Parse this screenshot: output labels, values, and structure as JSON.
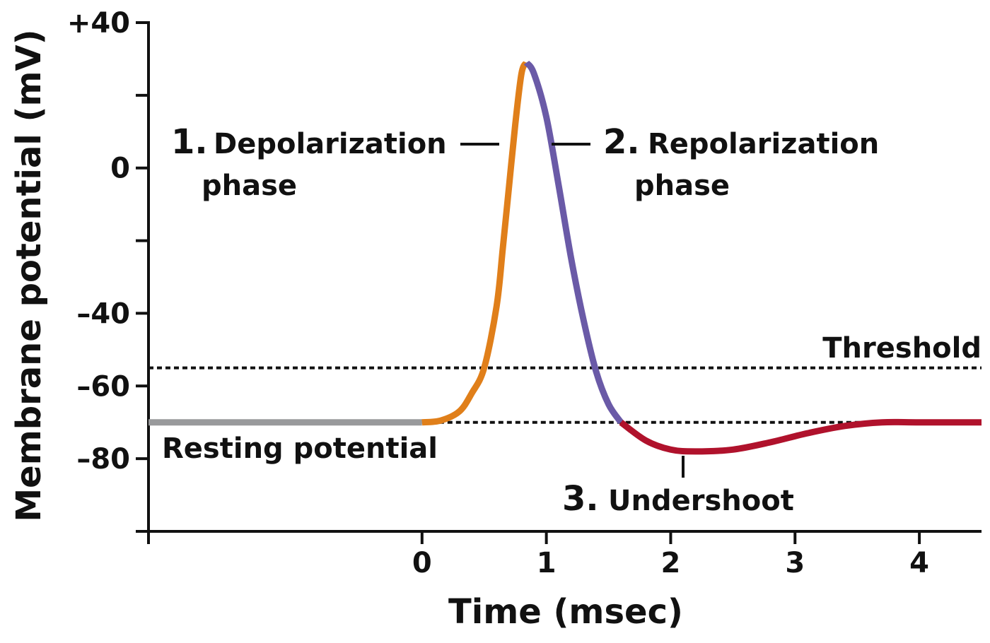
{
  "chart_data": {
    "type": "line",
    "title": "",
    "xlabel": "Time (msec)",
    "ylabel": "Membrane potential (mV)",
    "xlim": [
      -2.2,
      4.5
    ],
    "ylim": [
      -100,
      40
    ],
    "x_ticks": [
      {
        "value": 0,
        "label": "0"
      },
      {
        "value": 1,
        "label": "1"
      },
      {
        "value": 2,
        "label": "2"
      },
      {
        "value": 3,
        "label": "3"
      },
      {
        "value": 4,
        "label": "4"
      }
    ],
    "y_ticks": [
      {
        "value": 40,
        "label": "+40"
      },
      {
        "value": 20,
        "label": ""
      },
      {
        "value": 0,
        "label": "0"
      },
      {
        "value": -20,
        "label": ""
      },
      {
        "value": -40,
        "label": "–40"
      },
      {
        "value": -60,
        "label": "–60"
      },
      {
        "value": -80,
        "label": "–80"
      }
    ],
    "reference_lines": [
      {
        "name": "threshold",
        "y": -55,
        "x_from": -2.2,
        "x_to": 4.5,
        "style": "dotted",
        "label": "Threshold"
      },
      {
        "name": "resting",
        "y": -70,
        "x_from": 0,
        "x_to": 3.7,
        "style": "dotted",
        "label": ""
      }
    ],
    "series": [
      {
        "key": "resting",
        "color": "#999a9c",
        "points": [
          [
            -2.2,
            -70
          ],
          [
            0,
            -70
          ]
        ]
      },
      {
        "key": "depolarization",
        "color": "#e07f1a",
        "points": [
          [
            0,
            -70
          ],
          [
            0.15,
            -69.5
          ],
          [
            0.3,
            -67
          ],
          [
            0.4,
            -62
          ],
          [
            0.5,
            -55
          ],
          [
            0.6,
            -38
          ],
          [
            0.65,
            -22
          ],
          [
            0.7,
            -5
          ],
          [
            0.75,
            12
          ],
          [
            0.8,
            26
          ],
          [
            0.84,
            29
          ]
        ]
      },
      {
        "key": "repolarization",
        "color": "#6a5aa7",
        "points": [
          [
            0.84,
            29
          ],
          [
            0.9,
            26
          ],
          [
            1.0,
            14
          ],
          [
            1.1,
            -5
          ],
          [
            1.2,
            -25
          ],
          [
            1.3,
            -42
          ],
          [
            1.4,
            -56
          ],
          [
            1.5,
            -65
          ],
          [
            1.6,
            -70
          ]
        ]
      },
      {
        "key": "undershoot",
        "color": "#b0122c",
        "points": [
          [
            1.6,
            -70
          ],
          [
            1.8,
            -75
          ],
          [
            2.0,
            -77.5
          ],
          [
            2.2,
            -78
          ],
          [
            2.5,
            -77.5
          ],
          [
            2.8,
            -75.5
          ],
          [
            3.1,
            -73
          ],
          [
            3.4,
            -71
          ],
          [
            3.7,
            -70
          ],
          [
            4.0,
            -70
          ],
          [
            4.5,
            -70
          ]
        ]
      }
    ],
    "annotations": [
      {
        "key": "depolarization",
        "number": "1.",
        "line1": "Depolarization",
        "line2": "phase"
      },
      {
        "key": "repolarization",
        "number": "2.",
        "line1": "Repolarization",
        "line2": "phase"
      },
      {
        "key": "undershoot",
        "number": "3.",
        "line1": "Undershoot"
      },
      {
        "key": "resting",
        "text": "Resting potential"
      }
    ]
  }
}
